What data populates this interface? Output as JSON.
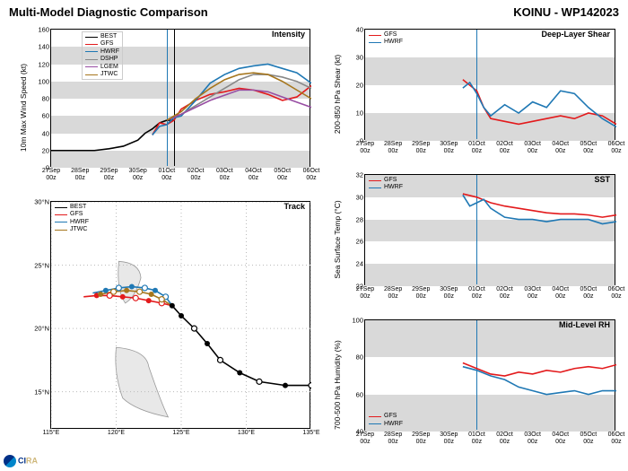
{
  "header": {
    "title_left": "Multi-Model Diagnostic Comparison",
    "title_right": "KOINU - WP142023"
  },
  "colors": {
    "BEST": "#000000",
    "GFS": "#e31a1c",
    "HWRF": "#1f78b4",
    "DSHP": "#888888",
    "LGEM": "#984ea3",
    "JTWC": "#a6761d",
    "band": "#d9d9d9",
    "vline": "#1f78b4",
    "vline2": "#000000",
    "grid": "#ffffff",
    "bg": "#ffffff"
  },
  "x_dates": [
    "27Sep\n00z",
    "28Sep\n00z",
    "29Sep\n00z",
    "30Sep\n00z",
    "01Oct\n00z",
    "02Oct\n00z",
    "03Oct\n00z",
    "04Oct\n00z",
    "05Oct\n00z",
    "06Oct\n00z"
  ],
  "x_span": [
    0,
    9
  ],
  "vline_x": 4.0,
  "vline2_x": 4.25,
  "intensity": {
    "title": "Intensity",
    "ylabel": "10m Max Wind Speed (kt)",
    "ylim": [
      0,
      160
    ],
    "ystep": 20,
    "bands": [
      [
        0,
        20
      ],
      [
        40,
        60
      ],
      [
        80,
        100
      ],
      [
        120,
        140
      ]
    ],
    "legend": [
      "BEST",
      "GFS",
      "HWRF",
      "DSHP",
      "LGEM",
      "JTWC"
    ],
    "series": {
      "BEST": [
        [
          0,
          20
        ],
        [
          0.5,
          20
        ],
        [
          1,
          20
        ],
        [
          1.5,
          20
        ],
        [
          2,
          22
        ],
        [
          2.5,
          25
        ],
        [
          3,
          32
        ],
        [
          3.25,
          40
        ],
        [
          3.5,
          45
        ],
        [
          3.75,
          52
        ],
        [
          4,
          55
        ],
        [
          4.25,
          55
        ]
      ],
      "GFS": [
        [
          3.5,
          38
        ],
        [
          3.75,
          52
        ],
        [
          4,
          50
        ],
        [
          4.25,
          55
        ],
        [
          4.5,
          68
        ],
        [
          5,
          78
        ],
        [
          5.5,
          85
        ],
        [
          6,
          88
        ],
        [
          6.5,
          92
        ],
        [
          7,
          90
        ],
        [
          7.5,
          85
        ],
        [
          8,
          78
        ],
        [
          8.5,
          82
        ],
        [
          9,
          95
        ]
      ],
      "HWRF": [
        [
          3.5,
          38
        ],
        [
          3.75,
          48
        ],
        [
          4,
          50
        ],
        [
          4.25,
          58
        ],
        [
          4.5,
          60
        ],
        [
          5,
          78
        ],
        [
          5.5,
          98
        ],
        [
          6,
          108
        ],
        [
          6.5,
          115
        ],
        [
          7,
          118
        ],
        [
          7.5,
          120
        ],
        [
          8,
          115
        ],
        [
          8.5,
          110
        ],
        [
          9,
          98
        ]
      ],
      "DSHP": [
        [
          4,
          55
        ],
        [
          4.5,
          62
        ],
        [
          5,
          72
        ],
        [
          5.5,
          82
        ],
        [
          6,
          92
        ],
        [
          6.5,
          102
        ],
        [
          7,
          108
        ],
        [
          7.5,
          108
        ],
        [
          8,
          105
        ],
        [
          8.5,
          100
        ],
        [
          9,
          92
        ]
      ],
      "LGEM": [
        [
          4,
          55
        ],
        [
          4.5,
          62
        ],
        [
          5,
          70
        ],
        [
          5.5,
          78
        ],
        [
          6,
          84
        ],
        [
          6.5,
          90
        ],
        [
          7,
          90
        ],
        [
          7.5,
          88
        ],
        [
          8,
          82
        ],
        [
          8.5,
          76
        ],
        [
          9,
          70
        ]
      ],
      "JTWC": [
        [
          4,
          55
        ],
        [
          4.5,
          65
        ],
        [
          5,
          80
        ],
        [
          5.5,
          92
        ],
        [
          6,
          102
        ],
        [
          6.5,
          108
        ],
        [
          7,
          110
        ],
        [
          7.5,
          108
        ],
        [
          8,
          100
        ],
        [
          8.5,
          90
        ],
        [
          9,
          80
        ]
      ]
    }
  },
  "track": {
    "title": "Track",
    "ylabel": "",
    "xlim": [
      115,
      135
    ],
    "xstep": 5,
    "xticks": [
      "115°E",
      "120°E",
      "125°E",
      "130°E",
      "135°E"
    ],
    "ylim": [
      12,
      30
    ],
    "ystep": 5,
    "yticks": [
      "15°N",
      "20°N",
      "25°N",
      "30°N"
    ],
    "ytickvals": [
      15,
      20,
      25,
      30
    ],
    "legend": [
      "BEST",
      "GFS",
      "HWRF",
      "JTWC"
    ],
    "series": {
      "BEST": [
        [
          135,
          15.5
        ],
        [
          133,
          15.5
        ],
        [
          131,
          15.8
        ],
        [
          129.5,
          16.5
        ],
        [
          128,
          17.5
        ],
        [
          127,
          18.8
        ],
        [
          126,
          20
        ],
        [
          125,
          21
        ],
        [
          124.3,
          21.8
        ]
      ],
      "GFS": [
        [
          124.3,
          21.8
        ],
        [
          123.5,
          22
        ],
        [
          122.5,
          22.2
        ],
        [
          121.5,
          22.4
        ],
        [
          120.5,
          22.5
        ],
        [
          119.5,
          22.6
        ],
        [
          118.5,
          22.6
        ],
        [
          117.5,
          22.5
        ]
      ],
      "HWRF": [
        [
          124.3,
          21.8
        ],
        [
          123.8,
          22.5
        ],
        [
          123,
          23
        ],
        [
          122.2,
          23.2
        ],
        [
          121.2,
          23.3
        ],
        [
          120.2,
          23.2
        ],
        [
          119.2,
          23
        ],
        [
          118.2,
          22.8
        ]
      ],
      "JTWC": [
        [
          124.3,
          21.8
        ],
        [
          123.5,
          22.3
        ],
        [
          122.7,
          22.7
        ],
        [
          121.8,
          22.9
        ],
        [
          120.8,
          23
        ],
        [
          119.8,
          22.9
        ],
        [
          118.8,
          22.7
        ]
      ]
    },
    "markers_open": {
      "BEST": [
        [
          135,
          15.5
        ],
        [
          131,
          15.8
        ],
        [
          128,
          17.5
        ],
        [
          126,
          20
        ]
      ],
      "GFS": [
        [
          123.5,
          22
        ],
        [
          121.5,
          22.4
        ],
        [
          119.5,
          22.6
        ]
      ],
      "HWRF": [
        [
          123.8,
          22.5
        ],
        [
          122.2,
          23.2
        ],
        [
          120.2,
          23.2
        ]
      ],
      "JTWC": [
        [
          123.5,
          22.3
        ],
        [
          121.8,
          22.9
        ],
        [
          119.8,
          22.9
        ]
      ]
    },
    "markers_fill": {
      "BEST": [
        [
          133,
          15.5
        ],
        [
          129.5,
          16.5
        ],
        [
          127,
          18.8
        ],
        [
          125,
          21
        ],
        [
          124.3,
          21.8
        ]
      ],
      "GFS": [
        [
          122.5,
          22.2
        ],
        [
          120.5,
          22.5
        ],
        [
          118.5,
          22.6
        ]
      ],
      "HWRF": [
        [
          123,
          23
        ],
        [
          121.2,
          23.3
        ],
        [
          119.2,
          23
        ]
      ],
      "JTWC": [
        [
          122.7,
          22.7
        ],
        [
          120.8,
          23
        ],
        [
          118.8,
          22.7
        ]
      ]
    }
  },
  "shear": {
    "title": "Deep-Layer Shear",
    "ylabel": "200-850 hPa Shear (kt)",
    "ylim": [
      0,
      40
    ],
    "ystep": 10,
    "bands": [
      [
        0,
        10
      ],
      [
        20,
        30
      ]
    ],
    "legend": [
      "GFS",
      "HWRF"
    ],
    "series": {
      "GFS": [
        [
          3.5,
          22
        ],
        [
          3.75,
          20
        ],
        [
          4,
          18
        ],
        [
          4.25,
          12
        ],
        [
          4.5,
          8
        ],
        [
          5,
          7
        ],
        [
          5.5,
          6
        ],
        [
          6,
          7
        ],
        [
          6.5,
          8
        ],
        [
          7,
          9
        ],
        [
          7.5,
          8
        ],
        [
          8,
          10
        ],
        [
          8.5,
          9
        ],
        [
          9,
          6
        ]
      ],
      "HWRF": [
        [
          3.5,
          19
        ],
        [
          3.75,
          21
        ],
        [
          4,
          17
        ],
        [
          4.25,
          12
        ],
        [
          4.5,
          9
        ],
        [
          5,
          13
        ],
        [
          5.5,
          10
        ],
        [
          6,
          14
        ],
        [
          6.5,
          12
        ],
        [
          7,
          18
        ],
        [
          7.5,
          17
        ],
        [
          8,
          12
        ],
        [
          8.5,
          8
        ],
        [
          9,
          5
        ]
      ]
    }
  },
  "sst": {
    "title": "SST",
    "ylabel": "Sea Surface Temp (°C)",
    "ylim": [
      22,
      32
    ],
    "ystep": 2,
    "bands": [
      [
        22,
        24
      ],
      [
        26,
        28
      ],
      [
        30,
        32
      ]
    ],
    "legend": [
      "GFS",
      "HWRF"
    ],
    "series": {
      "GFS": [
        [
          3.5,
          30.3
        ],
        [
          4,
          30
        ],
        [
          4.5,
          29.5
        ],
        [
          5,
          29.2
        ],
        [
          5.5,
          29
        ],
        [
          6,
          28.8
        ],
        [
          6.5,
          28.6
        ],
        [
          7,
          28.5
        ],
        [
          7.5,
          28.5
        ],
        [
          8,
          28.4
        ],
        [
          8.5,
          28.2
        ],
        [
          9,
          28.4
        ]
      ],
      "HWRF": [
        [
          3.5,
          30.2
        ],
        [
          3.75,
          29.2
        ],
        [
          4,
          29.5
        ],
        [
          4.25,
          29.8
        ],
        [
          4.5,
          29
        ],
        [
          5,
          28.2
        ],
        [
          5.5,
          28
        ],
        [
          6,
          28
        ],
        [
          6.5,
          27.8
        ],
        [
          7,
          28
        ],
        [
          7.5,
          28
        ],
        [
          8,
          28
        ],
        [
          8.5,
          27.6
        ],
        [
          9,
          27.8
        ]
      ]
    }
  },
  "rh": {
    "title": "Mid-Level RH",
    "ylabel": "700-500 hPa Humidity (%)",
    "ylim": [
      40,
      100
    ],
    "ystep": 20,
    "bands": [
      [
        40,
        60
      ],
      [
        80,
        100
      ]
    ],
    "legend": [
      "GFS",
      "HWRF"
    ],
    "series": {
      "GFS": [
        [
          3.5,
          77
        ],
        [
          4,
          74
        ],
        [
          4.5,
          71
        ],
        [
          5,
          70
        ],
        [
          5.5,
          72
        ],
        [
          6,
          71
        ],
        [
          6.5,
          73
        ],
        [
          7,
          72
        ],
        [
          7.5,
          74
        ],
        [
          8,
          75
        ],
        [
          8.5,
          74
        ],
        [
          9,
          76
        ]
      ],
      "HWRF": [
        [
          3.5,
          75
        ],
        [
          4,
          73
        ],
        [
          4.5,
          70
        ],
        [
          5,
          68
        ],
        [
          5.5,
          64
        ],
        [
          6,
          62
        ],
        [
          6.5,
          60
        ],
        [
          7,
          61
        ],
        [
          7.5,
          62
        ],
        [
          8,
          60
        ],
        [
          8.5,
          62
        ],
        [
          9,
          62
        ]
      ]
    }
  },
  "logo": {
    "org": "NOAA",
    "lab": "CIRA"
  }
}
